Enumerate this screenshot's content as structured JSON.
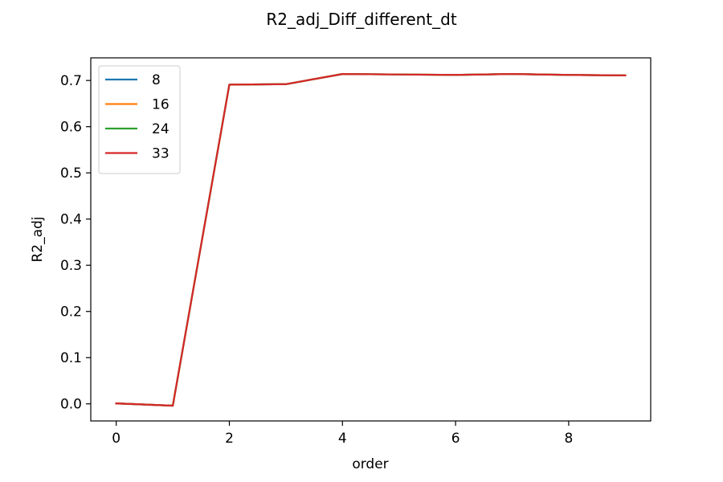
{
  "chart_data": {
    "type": "line",
    "title": "R2_adj_Diff_different_dt",
    "xlabel": "order",
    "ylabel": "R2_adj",
    "xlim": [
      -0.45,
      9.45
    ],
    "ylim": [
      -0.037,
      0.749
    ],
    "xticks": [
      0,
      2,
      4,
      6,
      8
    ],
    "xtick_labels": [
      "0",
      "2",
      "4",
      "6",
      "8"
    ],
    "yticks": [
      0.0,
      0.1,
      0.2,
      0.3,
      0.4,
      0.5,
      0.6,
      0.7
    ],
    "ytick_labels": [
      "0.0",
      "0.1",
      "0.2",
      "0.3",
      "0.4",
      "0.5",
      "0.6",
      "0.7"
    ],
    "grid": false,
    "legend_position": "top-left",
    "x": [
      0,
      1,
      2,
      3,
      4,
      5,
      6,
      7,
      8,
      9
    ],
    "series": [
      {
        "name": "8",
        "color": "#1f77b4",
        "values": [
          0.001,
          -0.004,
          0.691,
          0.692,
          0.714,
          0.713,
          0.712,
          0.714,
          0.712,
          0.711
        ]
      },
      {
        "name": "16",
        "color": "#ff7f0e",
        "values": [
          0.001,
          -0.004,
          0.691,
          0.692,
          0.714,
          0.713,
          0.712,
          0.714,
          0.712,
          0.711
        ]
      },
      {
        "name": "24",
        "color": "#2ca02c",
        "values": [
          0.001,
          -0.004,
          0.691,
          0.692,
          0.714,
          0.713,
          0.712,
          0.714,
          0.712,
          0.711
        ]
      },
      {
        "name": "33",
        "color": "#d62728",
        "values": [
          0.001,
          -0.004,
          0.691,
          0.692,
          0.714,
          0.713,
          0.712,
          0.714,
          0.712,
          0.711
        ]
      }
    ]
  }
}
